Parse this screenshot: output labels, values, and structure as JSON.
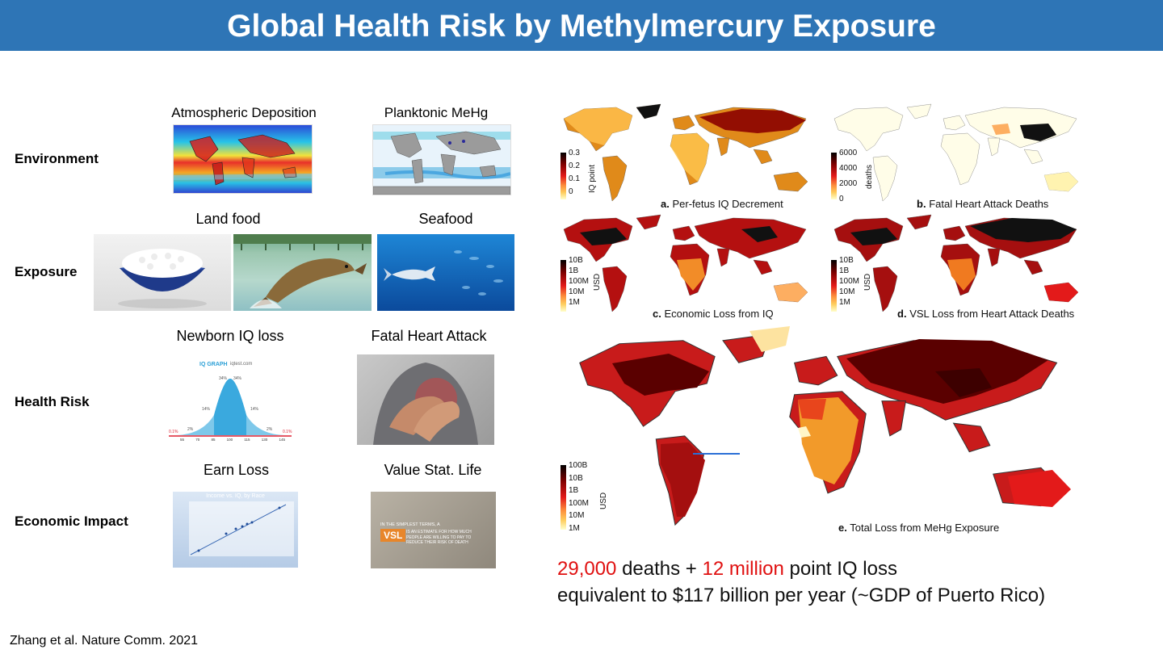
{
  "title": "Global Health Risk by Methylmercury Exposure",
  "rows": {
    "environment": "Environment",
    "exposure": "Exposure",
    "health_risk": "Health Risk",
    "economic_impact": "Economic Impact"
  },
  "captions": {
    "atmospheric": "Atmospheric Deposition",
    "planktonic": "Planktonic MeHg",
    "land_food": "Land food",
    "seafood": "Seafood",
    "newborn_iq": "Newborn IQ loss",
    "heart_attack": "Fatal Heart Attack",
    "earn_loss": "Earn Loss",
    "value_stat_life": "Value Stat. Life"
  },
  "thumbnails": {
    "iq_graph_title": "IQ GRAPH",
    "iq_graph_source": "iqtest.com",
    "iq_graph_pcts": [
      "0.1%",
      "2%",
      "14%",
      "34%",
      "34%",
      "14%",
      "2%",
      "0.1%"
    ],
    "iq_graph_scores": [
      "55",
      "70",
      "85",
      "100",
      "115",
      "130",
      "145"
    ],
    "iq_graph_xlabel": "IQ Score",
    "income_title": "Income vs. IQ, by Race",
    "vsl_text_1": "IN THE SIMPLEST TERMS, A",
    "vsl_word": "VSL",
    "vsl_text_2": "IS AN ESTIMATE FOR HOW MUCH PEOPLE ARE WILLING TO PAY TO REDUCE THEIR RISK OF DEATH"
  },
  "maps": {
    "a": {
      "caption": "Per-fetus IQ Decrement",
      "letter": "a.",
      "unit": "IQ point",
      "ticks": [
        "0.3",
        "0.2",
        "0.1",
        "0"
      ]
    },
    "b": {
      "caption": "Fatal Heart Attack Deaths",
      "letter": "b.",
      "unit": "deaths",
      "ticks": [
        "6000",
        "4000",
        "2000",
        "0"
      ]
    },
    "c": {
      "caption": "Economic Loss from IQ",
      "letter": "c.",
      "unit": "USD",
      "ticks": [
        "10B",
        "1B",
        "100M",
        "10M",
        "1M"
      ]
    },
    "d": {
      "caption": "VSL Loss from Heart Attack Deaths",
      "letter": "d.",
      "unit": "USD",
      "ticks": [
        "10B",
        "1B",
        "100M",
        "10M",
        "1M"
      ]
    },
    "e": {
      "caption": "Total Loss from MeHg Exposure",
      "letter": "e.",
      "unit": "USD",
      "ticks": [
        "100B",
        "10B",
        "1B",
        "100M",
        "10M",
        "1M"
      ]
    }
  },
  "summary": {
    "deaths": "29,000",
    "deaths_suffix": " deaths + ",
    "iq_loss": "12 million",
    "iq_suffix": " point IQ loss",
    "line2": "equivalent to $117 billion per year (~GDP of Puerto Rico)"
  },
  "citation": "Zhang et al. Nature Comm. 2021",
  "colors": {
    "banner": "#2e75b6",
    "highlight_red": "#e01010",
    "map_dark": "#6b0000",
    "map_mid": "#d7301f",
    "map_light": "#fdd49e"
  }
}
